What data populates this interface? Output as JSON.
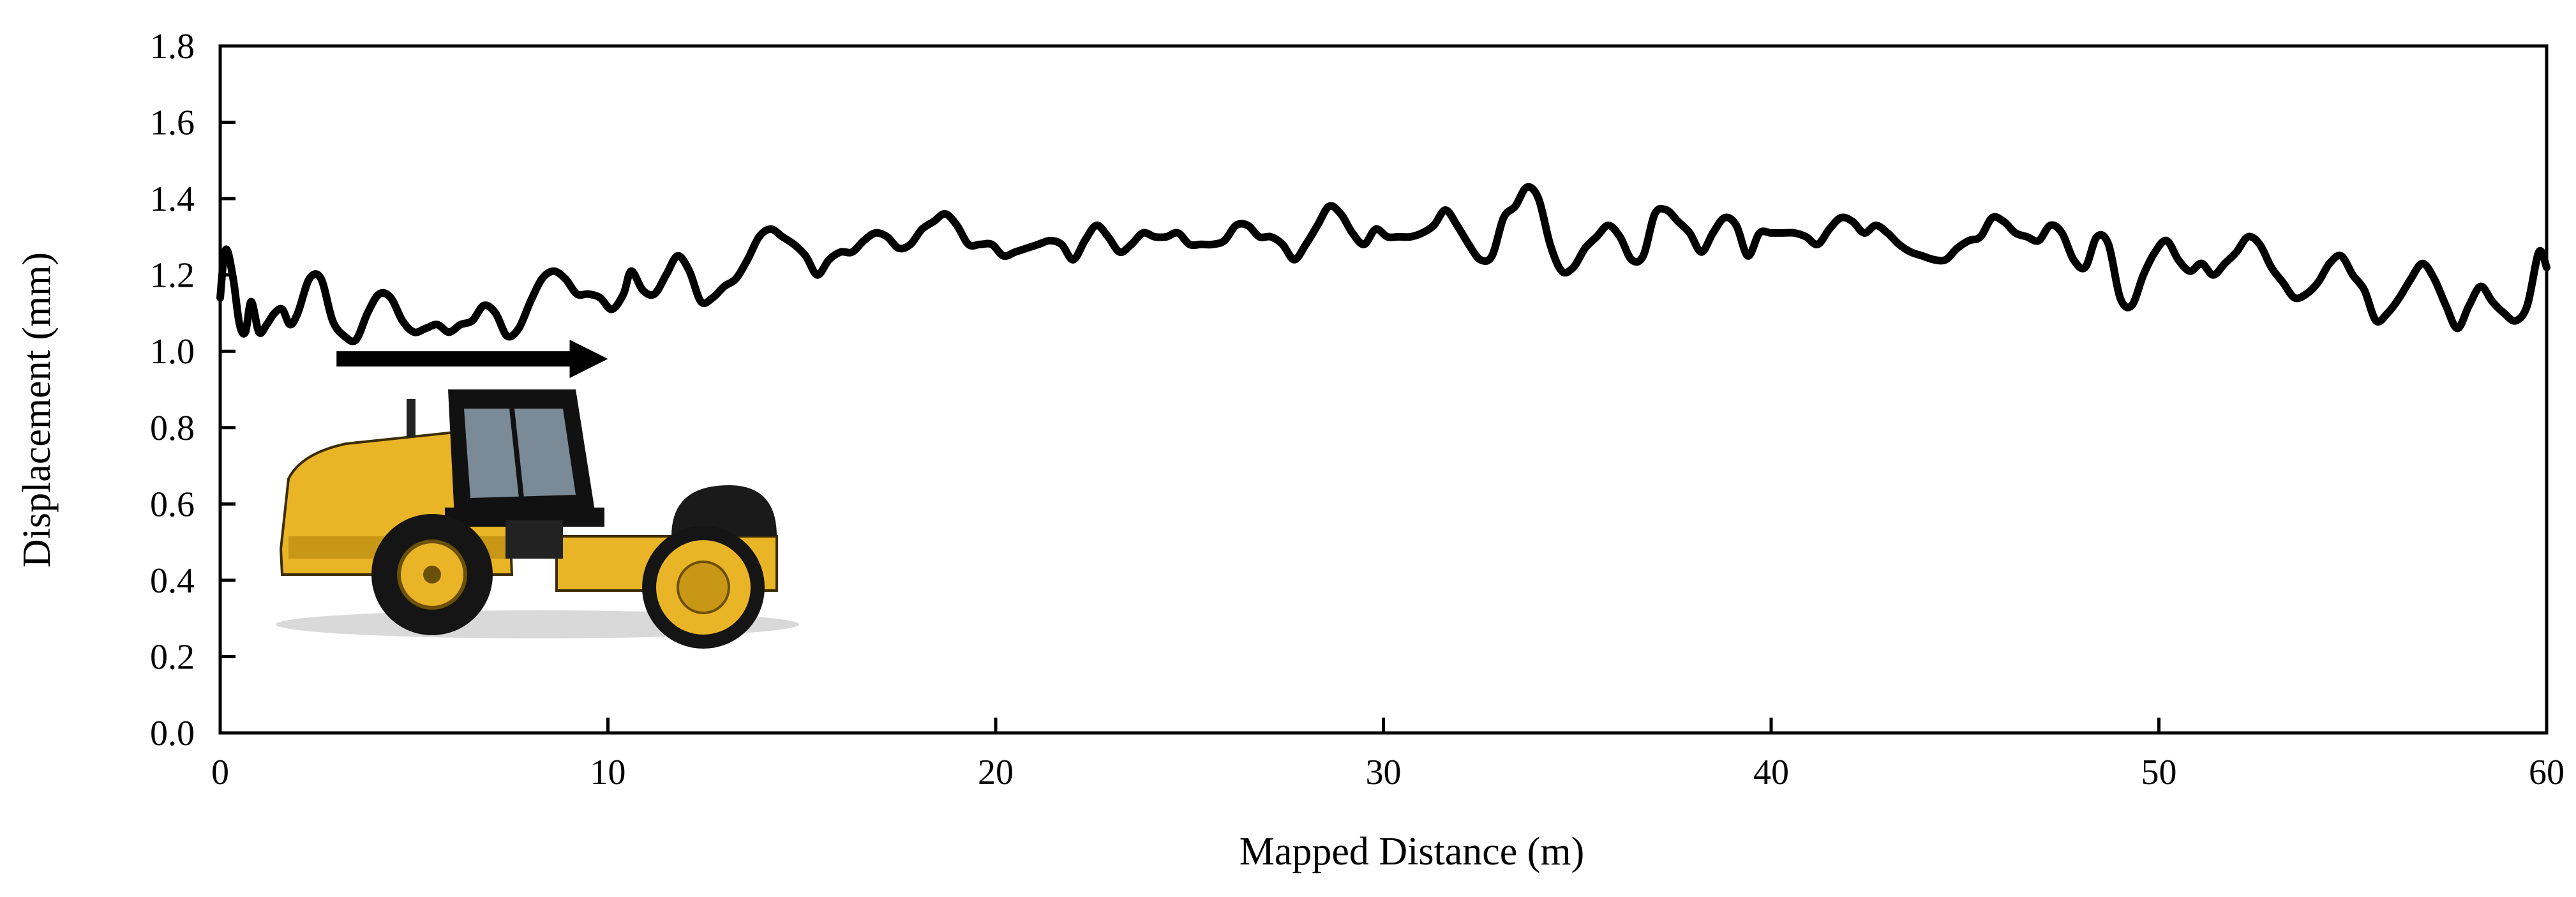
{
  "chart_data": {
    "type": "line",
    "title": "",
    "xlabel": "Mapped Distance (m)",
    "ylabel": "Displacement (mm)",
    "xlim": [
      0,
      60
    ],
    "ylim": [
      0.0,
      1.8
    ],
    "x_ticks": [
      "0",
      "10",
      "20",
      "30",
      "40",
      "50",
      "60"
    ],
    "y_ticks": [
      "0.0",
      "0.2",
      "0.4",
      "0.6",
      "0.8",
      "1.0",
      "1.2",
      "1.4",
      "1.6",
      "1.8"
    ],
    "grid": false,
    "legend": "none",
    "series": [
      {
        "color": "#000000",
        "points": [
          [
            0.0,
            1.14
          ],
          [
            0.1,
            1.25
          ],
          [
            0.2,
            1.26
          ],
          [
            0.35,
            1.18
          ],
          [
            0.5,
            1.07
          ],
          [
            0.65,
            1.05
          ],
          [
            0.8,
            1.13
          ],
          [
            1.0,
            1.05
          ],
          [
            1.2,
            1.07
          ],
          [
            1.4,
            1.1
          ],
          [
            1.6,
            1.11
          ],
          [
            1.8,
            1.07
          ],
          [
            2.0,
            1.1
          ],
          [
            2.3,
            1.19
          ],
          [
            2.6,
            1.19
          ],
          [
            2.9,
            1.08
          ],
          [
            3.2,
            1.04
          ],
          [
            3.5,
            1.03
          ],
          [
            3.8,
            1.1
          ],
          [
            4.1,
            1.15
          ],
          [
            4.4,
            1.14
          ],
          [
            4.7,
            1.08
          ],
          [
            5.0,
            1.05
          ],
          [
            5.3,
            1.06
          ],
          [
            5.6,
            1.07
          ],
          [
            5.9,
            1.05
          ],
          [
            6.2,
            1.07
          ],
          [
            6.5,
            1.08
          ],
          [
            6.8,
            1.12
          ],
          [
            7.1,
            1.1
          ],
          [
            7.4,
            1.04
          ],
          [
            7.7,
            1.06
          ],
          [
            8.0,
            1.13
          ],
          [
            8.3,
            1.19
          ],
          [
            8.6,
            1.21
          ],
          [
            8.9,
            1.19
          ],
          [
            9.2,
            1.15
          ],
          [
            9.5,
            1.15
          ],
          [
            9.8,
            1.14
          ],
          [
            10.1,
            1.11
          ],
          [
            10.4,
            1.15
          ],
          [
            10.6,
            1.21
          ],
          [
            10.9,
            1.16
          ],
          [
            11.2,
            1.15
          ],
          [
            11.5,
            1.2
          ],
          [
            11.8,
            1.25
          ],
          [
            12.1,
            1.21
          ],
          [
            12.4,
            1.13
          ],
          [
            12.7,
            1.14
          ],
          [
            13.0,
            1.17
          ],
          [
            13.3,
            1.19
          ],
          [
            13.6,
            1.24
          ],
          [
            13.9,
            1.3
          ],
          [
            14.2,
            1.32
          ],
          [
            14.5,
            1.3
          ],
          [
            14.8,
            1.28
          ],
          [
            15.1,
            1.25
          ],
          [
            15.4,
            1.2
          ],
          [
            15.7,
            1.24
          ],
          [
            16.0,
            1.26
          ],
          [
            16.3,
            1.26
          ],
          [
            16.6,
            1.29
          ],
          [
            16.9,
            1.31
          ],
          [
            17.2,
            1.3
          ],
          [
            17.5,
            1.27
          ],
          [
            17.8,
            1.28
          ],
          [
            18.1,
            1.32
          ],
          [
            18.4,
            1.34
          ],
          [
            18.7,
            1.36
          ],
          [
            19.0,
            1.33
          ],
          [
            19.3,
            1.28
          ],
          [
            19.6,
            1.28
          ],
          [
            19.9,
            1.28
          ],
          [
            20.2,
            1.25
          ],
          [
            20.5,
            1.26
          ],
          [
            20.8,
            1.27
          ],
          [
            21.1,
            1.28
          ],
          [
            21.4,
            1.29
          ],
          [
            21.7,
            1.28
          ],
          [
            22.0,
            1.24
          ],
          [
            22.3,
            1.29
          ],
          [
            22.6,
            1.33
          ],
          [
            22.9,
            1.3
          ],
          [
            23.2,
            1.26
          ],
          [
            23.5,
            1.28
          ],
          [
            23.8,
            1.31
          ],
          [
            24.1,
            1.3
          ],
          [
            24.4,
            1.3
          ],
          [
            24.7,
            1.31
          ],
          [
            25.0,
            1.28
          ],
          [
            25.3,
            1.28
          ],
          [
            25.6,
            1.28
          ],
          [
            25.9,
            1.29
          ],
          [
            26.2,
            1.33
          ],
          [
            26.5,
            1.33
          ],
          [
            26.8,
            1.3
          ],
          [
            27.1,
            1.3
          ],
          [
            27.4,
            1.28
          ],
          [
            27.7,
            1.24
          ],
          [
            28.0,
            1.28
          ],
          [
            28.3,
            1.33
          ],
          [
            28.6,
            1.38
          ],
          [
            28.9,
            1.36
          ],
          [
            29.2,
            1.31
          ],
          [
            29.5,
            1.28
          ],
          [
            29.8,
            1.32
          ],
          [
            30.1,
            1.3
          ],
          [
            30.4,
            1.3
          ],
          [
            30.7,
            1.3
          ],
          [
            31.0,
            1.31
          ],
          [
            31.3,
            1.33
          ],
          [
            31.6,
            1.37
          ],
          [
            31.9,
            1.33
          ],
          [
            32.2,
            1.28
          ],
          [
            32.5,
            1.24
          ],
          [
            32.8,
            1.25
          ],
          [
            33.1,
            1.35
          ],
          [
            33.4,
            1.38
          ],
          [
            33.7,
            1.43
          ],
          [
            34.0,
            1.4
          ],
          [
            34.3,
            1.28
          ],
          [
            34.6,
            1.21
          ],
          [
            34.9,
            1.22
          ],
          [
            35.2,
            1.27
          ],
          [
            35.5,
            1.3
          ],
          [
            35.8,
            1.33
          ],
          [
            36.1,
            1.3
          ],
          [
            36.4,
            1.24
          ],
          [
            36.7,
            1.25
          ],
          [
            37.0,
            1.36
          ],
          [
            37.3,
            1.37
          ],
          [
            37.6,
            1.34
          ],
          [
            37.9,
            1.31
          ],
          [
            38.2,
            1.26
          ],
          [
            38.5,
            1.31
          ],
          [
            38.8,
            1.35
          ],
          [
            39.1,
            1.33
          ],
          [
            39.4,
            1.25
          ],
          [
            39.7,
            1.31
          ],
          [
            40.0,
            1.31
          ],
          [
            40.3,
            1.31
          ],
          [
            40.6,
            1.31
          ],
          [
            40.9,
            1.3
          ],
          [
            41.2,
            1.28
          ],
          [
            41.5,
            1.32
          ],
          [
            41.8,
            1.35
          ],
          [
            42.1,
            1.34
          ],
          [
            42.4,
            1.31
          ],
          [
            42.7,
            1.33
          ],
          [
            43.0,
            1.31
          ],
          [
            43.3,
            1.28
          ],
          [
            43.6,
            1.26
          ],
          [
            43.9,
            1.25
          ],
          [
            44.2,
            1.24
          ],
          [
            44.5,
            1.24
          ],
          [
            44.8,
            1.27
          ],
          [
            45.1,
            1.29
          ],
          [
            45.4,
            1.3
          ],
          [
            45.7,
            1.35
          ],
          [
            46.0,
            1.34
          ],
          [
            46.3,
            1.31
          ],
          [
            46.6,
            1.3
          ],
          [
            46.9,
            1.29
          ],
          [
            47.2,
            1.33
          ],
          [
            47.5,
            1.31
          ],
          [
            47.8,
            1.24
          ],
          [
            48.1,
            1.22
          ],
          [
            48.4,
            1.3
          ],
          [
            48.7,
            1.28
          ],
          [
            49.0,
            1.14
          ],
          [
            49.3,
            1.12
          ],
          [
            49.6,
            1.2
          ],
          [
            49.9,
            1.26
          ],
          [
            50.2,
            1.29
          ],
          [
            50.5,
            1.24
          ],
          [
            50.8,
            1.21
          ],
          [
            51.1,
            1.23
          ],
          [
            51.4,
            1.2
          ],
          [
            51.7,
            1.23
          ],
          [
            52.0,
            1.26
          ],
          [
            52.3,
            1.3
          ],
          [
            52.6,
            1.28
          ],
          [
            52.9,
            1.22
          ],
          [
            53.2,
            1.18
          ],
          [
            53.5,
            1.14
          ],
          [
            53.8,
            1.15
          ],
          [
            54.1,
            1.18
          ],
          [
            54.4,
            1.23
          ],
          [
            54.7,
            1.25
          ],
          [
            55.0,
            1.2
          ],
          [
            55.3,
            1.16
          ],
          [
            55.6,
            1.08
          ],
          [
            55.9,
            1.1
          ],
          [
            56.2,
            1.14
          ],
          [
            56.5,
            1.19
          ],
          [
            56.8,
            1.23
          ],
          [
            57.1,
            1.19
          ],
          [
            57.4,
            1.12
          ],
          [
            57.7,
            1.06
          ],
          [
            58.0,
            1.12
          ],
          [
            58.3,
            1.17
          ],
          [
            58.6,
            1.13
          ],
          [
            58.9,
            1.1
          ],
          [
            59.2,
            1.08
          ],
          [
            59.5,
            1.12
          ],
          [
            59.8,
            1.26
          ],
          [
            60.0,
            1.22
          ]
        ]
      }
    ],
    "annotations": [
      {
        "type": "arrow",
        "direction": "right",
        "from_x": 3.0,
        "to_x": 10.0,
        "y": 0.98
      },
      {
        "type": "image",
        "depicts": "yellow CAT CS56 vibratory soil compactor roller"
      }
    ]
  }
}
